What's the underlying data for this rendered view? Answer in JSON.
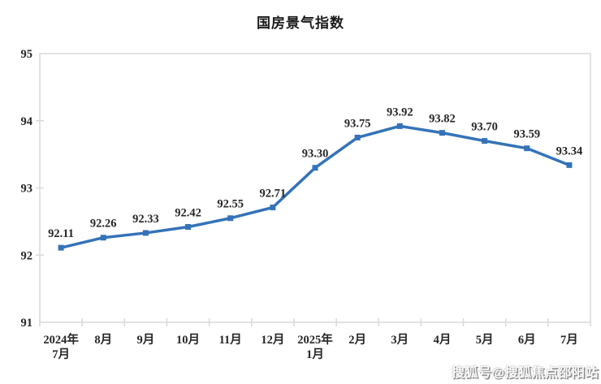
{
  "title": "国房景气指数",
  "watermark": "搜狐号@搜狐焦点邵阳站",
  "colors": {
    "line": "#3473B8",
    "axis": "#D9D9D9",
    "text": "#262626"
  },
  "chart_data": {
    "type": "line",
    "title": "国房景气指数",
    "categories": [
      "2024年\n7月",
      "8月",
      "9月",
      "10月",
      "11月",
      "12月",
      "2025年\n1月",
      "2月",
      "3月",
      "4月",
      "5月",
      "6月",
      "7月"
    ],
    "values": [
      92.11,
      92.26,
      92.33,
      92.42,
      92.55,
      92.71,
      93.3,
      93.75,
      93.92,
      93.82,
      93.7,
      93.59,
      93.34
    ],
    "data_labels": [
      "92.11",
      "92.26",
      "92.33",
      "92.42",
      "92.55",
      "92.71",
      "93.30",
      "93.75",
      "93.92",
      "93.82",
      "93.70",
      "93.59",
      "93.34"
    ],
    "ylim": [
      91,
      95
    ],
    "yticks": [
      91,
      92,
      93,
      94,
      95
    ],
    "grid": false,
    "legend": "none",
    "marker": "square",
    "series_name": "国房景气指数"
  }
}
